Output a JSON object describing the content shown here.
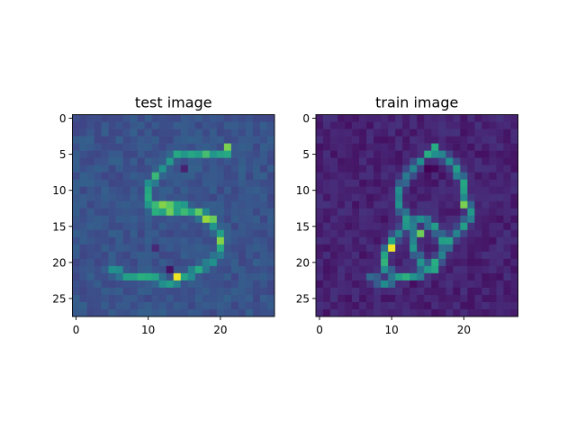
{
  "chart_data": [
    {
      "type": "heatmap",
      "title": "test image",
      "size": 28,
      "colormap": "viridis",
      "xticks": [
        0,
        10,
        20
      ],
      "yticks": [
        0,
        5,
        10,
        15,
        20,
        25
      ],
      "xlim": [
        -0.5,
        27.5
      ],
      "ylim": [
        27.5,
        -0.5
      ],
      "background_level": 0.26,
      "noise_amplitude": 0.05,
      "strokes": [
        {
          "points": [
            [
              21,
              5
            ],
            [
              17,
              5
            ],
            [
              14,
              5
            ],
            [
              13,
              6
            ],
            [
              11,
              8
            ],
            [
              10,
              10
            ],
            [
              10,
              12
            ],
            [
              11,
              13
            ],
            [
              13,
              13
            ],
            [
              16,
              13
            ],
            [
              18,
              14
            ],
            [
              20,
              16
            ],
            [
              20,
              18
            ],
            [
              19,
              20
            ],
            [
              17,
              21
            ],
            [
              15,
              22
            ],
            [
              13,
              23
            ],
            [
              10,
              22
            ],
            [
              7,
              22
            ],
            [
              5,
              21
            ]
          ],
          "level": 0.6
        },
        {
          "points": [
            [
              11,
              12
            ],
            [
              13,
              12
            ],
            [
              17,
              13
            ],
            [
              19,
              14
            ]
          ],
          "level": 0.72
        }
      ],
      "hot_pixels": [
        {
          "x": 14,
          "y": 22,
          "level": 0.98
        },
        {
          "x": 18,
          "y": 14,
          "level": 0.85
        },
        {
          "x": 20,
          "y": 17,
          "level": 0.82
        },
        {
          "x": 21,
          "y": 4,
          "level": 0.8
        },
        {
          "x": 13,
          "y": 13,
          "level": 0.78
        },
        {
          "x": 13,
          "y": 21,
          "level": 0.05
        },
        {
          "x": 11,
          "y": 18,
          "level": 0.12
        },
        {
          "x": 15,
          "y": 7,
          "level": 0.1
        }
      ]
    },
    {
      "type": "heatmap",
      "title": "train image",
      "size": 28,
      "colormap": "viridis",
      "xticks": [
        0,
        10,
        20
      ],
      "yticks": [
        0,
        5,
        10,
        15,
        20,
        25
      ],
      "xlim": [
        -0.5,
        27.5
      ],
      "ylim": [
        27.5,
        -0.5
      ],
      "background_level": 0.1,
      "noise_amplitude": 0.05,
      "strokes": [
        {
          "points": [
            [
              15,
              5
            ],
            [
              17,
              5
            ],
            [
              19,
              7
            ],
            [
              20,
              9
            ],
            [
              20,
              11
            ],
            [
              21,
              13
            ],
            [
              20,
              15
            ],
            [
              18,
              17
            ],
            [
              17,
              19
            ],
            [
              15,
              21
            ],
            [
              13,
              22
            ],
            [
              11,
              22
            ],
            [
              9,
              21
            ],
            [
              9,
              19
            ],
            [
              10,
              17
            ],
            [
              12,
              15
            ],
            [
              14,
              14
            ],
            [
              16,
              15
            ],
            [
              17,
              17
            ]
          ],
          "level": 0.55
        },
        {
          "points": [
            [
              14,
              6
            ],
            [
              12,
              8
            ],
            [
              11,
              10
            ],
            [
              11,
              12
            ],
            [
              12,
              14
            ],
            [
              13,
              16
            ],
            [
              13,
              18
            ],
            [
              14,
              20
            ],
            [
              16,
              21
            ]
          ],
          "level": 0.5
        },
        {
          "points": [
            [
              7,
              22
            ],
            [
              9,
              23
            ],
            [
              11,
              22
            ],
            [
              13,
              22
            ]
          ],
          "level": 0.42
        }
      ],
      "hot_pixels": [
        {
          "x": 10,
          "y": 18,
          "level": 0.98
        },
        {
          "x": 20,
          "y": 12,
          "level": 0.8
        },
        {
          "x": 14,
          "y": 16,
          "level": 0.78
        },
        {
          "x": 16,
          "y": 4,
          "level": 0.62
        },
        {
          "x": 15,
          "y": 7,
          "level": 0.0
        },
        {
          "x": 16,
          "y": 7,
          "level": 0.02
        },
        {
          "x": 13,
          "y": 23,
          "level": 0.04
        },
        {
          "x": 12,
          "y": 20,
          "level": 0.15
        }
      ]
    }
  ]
}
